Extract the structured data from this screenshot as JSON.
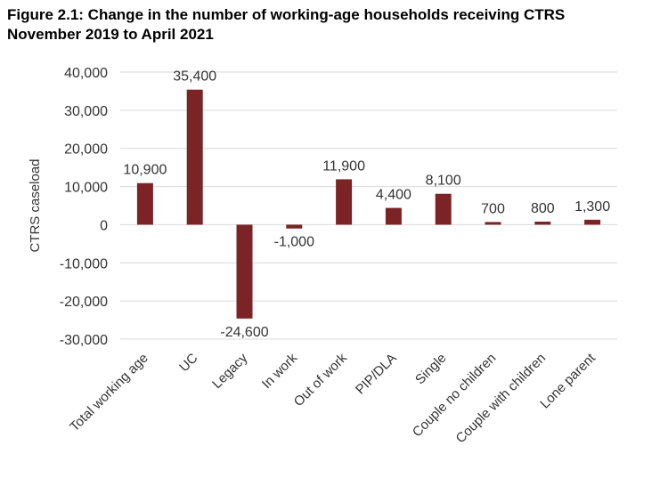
{
  "figure": {
    "title_line1": "Figure 2.1: Change in the number of working-age households receiving CTRS",
    "title_line2": "November 2019 to April 2021"
  },
  "colors": {
    "bar": "#7b2325",
    "grid": "#d9d9d9",
    "text": "#333333"
  },
  "chart_data": {
    "type": "bar",
    "title": "Figure 2.1: Change in the number of working-age households receiving CTRS November 2019 to April 2021",
    "xlabel": "",
    "ylabel": "CTRS caseload",
    "ylim": [
      -30000,
      40000
    ],
    "yticks": [
      40000,
      30000,
      20000,
      10000,
      0,
      -10000,
      -20000,
      -30000
    ],
    "ytick_labels": [
      "40,000",
      "30,000",
      "20,000",
      "10,000",
      "0",
      "-10,000",
      "-20,000",
      "-30,000"
    ],
    "grid": true,
    "legend": "none",
    "categories": [
      "Total working age",
      "UC",
      "Legacy",
      "In work",
      "Out of work",
      "PIP/DLA",
      "Single",
      "Couple no children",
      "Couple with children",
      "Lone parent"
    ],
    "values": [
      10900,
      35400,
      -24600,
      -1000,
      11900,
      4400,
      8100,
      700,
      800,
      1300
    ],
    "data_labels": [
      "10,900",
      "35,400",
      "-24,600",
      "-1,000",
      "11,900",
      "4,400",
      "8,100",
      "700",
      "800",
      "1,300"
    ]
  }
}
